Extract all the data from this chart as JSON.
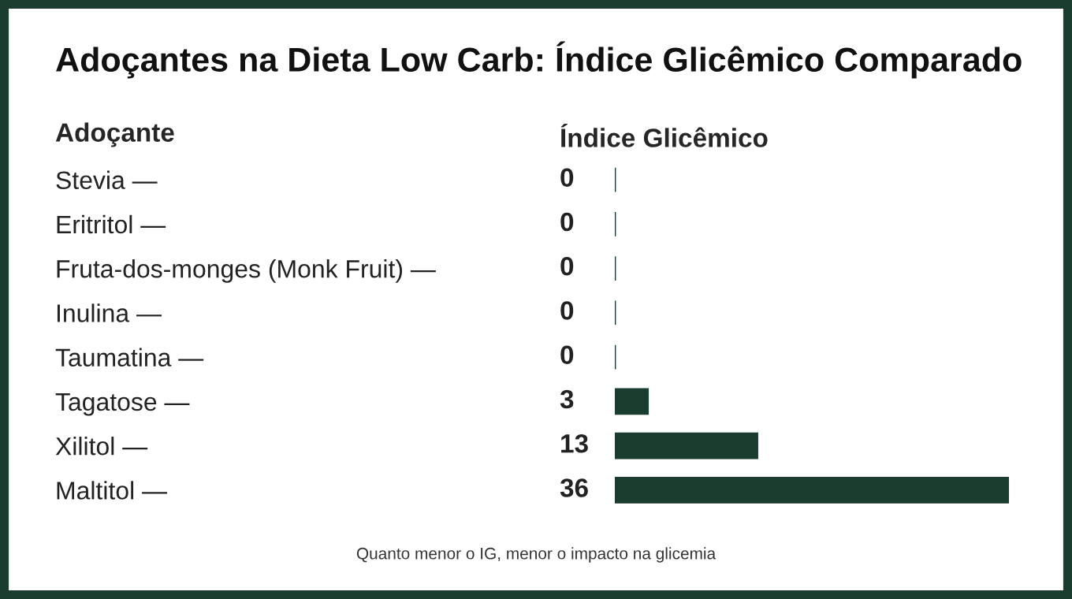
{
  "chart_data": {
    "type": "bar",
    "orientation": "horizontal",
    "title": "Adoçantes na Dieta Low Carb: Índice Glicêmico Comparado",
    "ylabel": "Adoçante",
    "xlabel": "Índice Glicêmico",
    "categories": [
      "Stevia —",
      "Eritritol —",
      "Fruta-dos-monges (Monk Fruit) —",
      "Inulina —",
      "Taumatina —",
      "Tagatose —",
      "Xilitol —",
      "Maltitol —"
    ],
    "values": [
      0,
      0,
      0,
      0,
      0,
      3,
      13,
      36
    ],
    "color": "#1b3d2f",
    "xlim": [
      0,
      36
    ],
    "data_labels": true,
    "tick_labels": "y",
    "annotations": [
      "Quanto menor o IG, menor o impacto na glicemia"
    ]
  }
}
